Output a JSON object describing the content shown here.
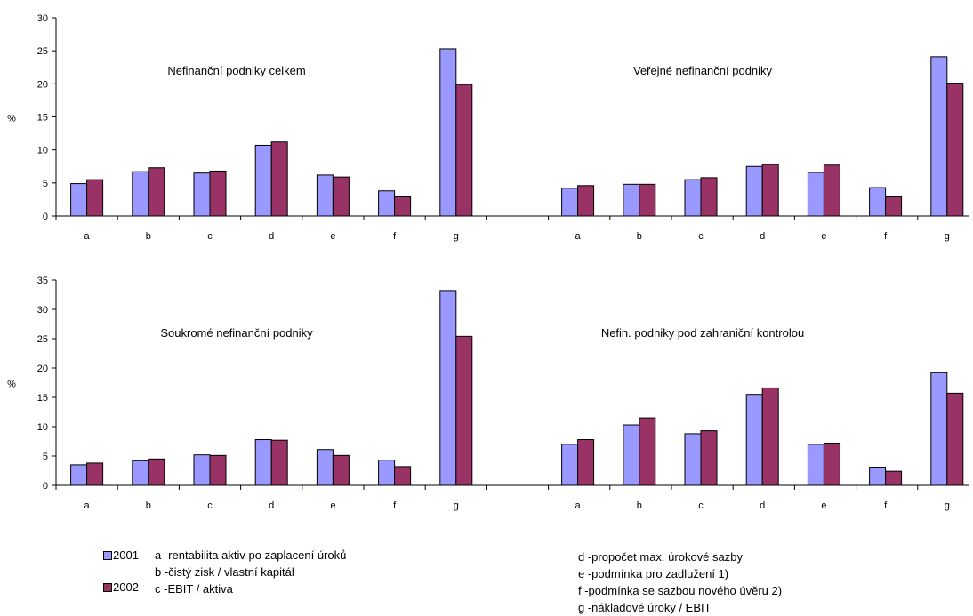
{
  "colors": {
    "s2001": "#9999ff",
    "s2002": "#993366"
  },
  "legend": {
    "items": [
      {
        "label": "2001"
      },
      {
        "label": "2002"
      }
    ]
  },
  "definitions": [
    "a -rentabilita aktiv po zaplacení úroků",
    "b -čistý zisk / vlastní kapitál",
    "c -EBIT / aktiva",
    "d -propočet max. úrokové sazby",
    "e -podmínka pro zadlužení 1)",
    "f -podmínka se sazbou nového úvěru 2)",
    "g -nákladové úroky / EBIT"
  ],
  "chart_data": [
    {
      "type": "bar",
      "ylabel": "%",
      "ylim": [
        0,
        30
      ],
      "yticks": [
        0,
        5,
        10,
        15,
        20,
        25,
        30
      ],
      "groups": [
        {
          "title": "Nefinanční podniky celkem",
          "categories": [
            "a",
            "b",
            "c",
            "d",
            "e",
            "f",
            "g"
          ],
          "series": [
            {
              "name": "2001",
              "values": [
                4.9,
                6.7,
                6.5,
                10.7,
                6.2,
                3.8,
                25.3
              ]
            },
            {
              "name": "2002",
              "values": [
                5.5,
                7.3,
                6.8,
                11.2,
                5.9,
                2.9,
                19.9
              ]
            }
          ]
        },
        {
          "title": "Veřejné nefinanční podniky",
          "categories": [
            "a",
            "b",
            "c",
            "d",
            "e",
            "f",
            "g"
          ],
          "series": [
            {
              "name": "2001",
              "values": [
                4.2,
                4.8,
                5.5,
                7.5,
                6.6,
                4.3,
                24.1
              ]
            },
            {
              "name": "2002",
              "values": [
                4.6,
                4.8,
                5.8,
                7.8,
                7.7,
                2.9,
                20.1
              ]
            }
          ]
        }
      ]
    },
    {
      "type": "bar",
      "ylabel": "%",
      "ylim": [
        0,
        35
      ],
      "yticks": [
        0,
        5,
        10,
        15,
        20,
        25,
        30,
        35
      ],
      "groups": [
        {
          "title": "Soukromé nefinanční podniky",
          "categories": [
            "a",
            "b",
            "c",
            "d",
            "e",
            "f",
            "g"
          ],
          "series": [
            {
              "name": "2001",
              "values": [
                3.5,
                4.2,
                5.2,
                7.8,
                6.1,
                4.3,
                33.2
              ]
            },
            {
              "name": "2002",
              "values": [
                3.8,
                4.5,
                5.1,
                7.7,
                5.1,
                3.2,
                25.4
              ]
            }
          ]
        },
        {
          "title": "Nefin. podniky pod zahraniční kontrolou",
          "categories": [
            "a",
            "b",
            "c",
            "d",
            "e",
            "f",
            "g"
          ],
          "series": [
            {
              "name": "2001",
              "values": [
                7.0,
                10.3,
                8.8,
                15.5,
                7.0,
                3.1,
                19.2
              ]
            },
            {
              "name": "2002",
              "values": [
                7.8,
                11.5,
                9.3,
                16.6,
                7.2,
                2.4,
                15.7
              ]
            }
          ]
        }
      ]
    }
  ]
}
